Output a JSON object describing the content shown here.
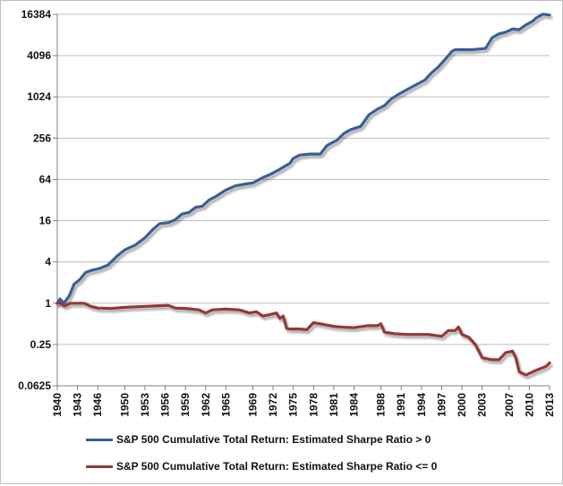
{
  "chart_data": {
    "type": "line",
    "title": "",
    "xlabel": "",
    "ylabel": "",
    "y_scale": "log2",
    "ylim": [
      0.0625,
      16384
    ],
    "xlim": [
      1940,
      2013
    ],
    "yticks": [
      "0.0625",
      "0.25",
      "1",
      "4",
      "16",
      "64",
      "256",
      "1024",
      "4096",
      "16384"
    ],
    "ytick_values": [
      0.0625,
      0.25,
      1,
      4,
      16,
      64,
      256,
      1024,
      4096,
      16384
    ],
    "xticks": [
      "1940",
      "1943",
      "1946",
      "1950",
      "1953",
      "1956",
      "1959",
      "1962",
      "1965",
      "1969",
      "1972",
      "1975",
      "1978",
      "1981",
      "1984",
      "1988",
      "1991",
      "1994",
      "1997",
      "2000",
      "2003",
      "2007",
      "2010",
      "2013"
    ],
    "xtick_values": [
      1940,
      1943,
      1946,
      1950,
      1953,
      1956,
      1959,
      1962,
      1965,
      1969,
      1972,
      1975,
      1978,
      1981,
      1984,
      1988,
      1991,
      1994,
      1997,
      2000,
      2003,
      2007,
      2010,
      2013
    ],
    "grid": "horizontal",
    "legend_position": "bottom",
    "series": [
      {
        "name": "S&P 500 Cumulative Total Return: Estimated Sharpe Ratio > 0",
        "color": "#3a5f95",
        "points": [
          [
            1940.0,
            1.0
          ],
          [
            1940.4,
            1.15
          ],
          [
            1941.0,
            1.0
          ],
          [
            1941.8,
            1.3
          ],
          [
            1942.5,
            1.9
          ],
          [
            1943.3,
            2.2
          ],
          [
            1944.2,
            2.8
          ],
          [
            1945.0,
            3.0
          ],
          [
            1946.2,
            3.2
          ],
          [
            1947.5,
            3.6
          ],
          [
            1949.0,
            5.0
          ],
          [
            1950.0,
            6.0
          ],
          [
            1951.5,
            7.0
          ],
          [
            1953.0,
            9.0
          ],
          [
            1954.2,
            12.0
          ],
          [
            1955.2,
            14.5
          ],
          [
            1956.5,
            15.0
          ],
          [
            1957.5,
            16.5
          ],
          [
            1958.5,
            20.0
          ],
          [
            1959.5,
            21.0
          ],
          [
            1960.5,
            25.0
          ],
          [
            1961.5,
            26.0
          ],
          [
            1962.5,
            32.0
          ],
          [
            1963.5,
            36.0
          ],
          [
            1965.0,
            45.0
          ],
          [
            1966.5,
            52.0
          ],
          [
            1968.0,
            55.0
          ],
          [
            1969.0,
            57.0
          ],
          [
            1970.5,
            68.0
          ],
          [
            1971.5,
            75.0
          ],
          [
            1973.0,
            90.0
          ],
          [
            1974.5,
            110.0
          ],
          [
            1975.0,
            130.0
          ],
          [
            1976.0,
            145.0
          ],
          [
            1977.5,
            150.0
          ],
          [
            1979.0,
            150.0
          ],
          [
            1980.0,
            200.0
          ],
          [
            1981.5,
            240.0
          ],
          [
            1982.5,
            300.0
          ],
          [
            1983.5,
            340.0
          ],
          [
            1985.0,
            380.0
          ],
          [
            1986.2,
            560.0
          ],
          [
            1987.5,
            680.0
          ],
          [
            1988.5,
            760.0
          ],
          [
            1989.5,
            950.0
          ],
          [
            1990.5,
            1100.0
          ],
          [
            1991.5,
            1250.0
          ],
          [
            1993.0,
            1500.0
          ],
          [
            1994.5,
            1800.0
          ],
          [
            1995.5,
            2300.0
          ],
          [
            1996.5,
            2800.0
          ],
          [
            1997.5,
            3600.0
          ],
          [
            1998.5,
            4700.0
          ],
          [
            1999.0,
            5000.0
          ],
          [
            2000.0,
            5000.0
          ],
          [
            2001.0,
            5000.0
          ],
          [
            2001.5,
            5000.0
          ],
          [
            2002.5,
            5100.0
          ],
          [
            2003.5,
            5200.0
          ],
          [
            2004.5,
            7500.0
          ],
          [
            2005.5,
            8500.0
          ],
          [
            2006.5,
            9000.0
          ],
          [
            2007.5,
            10000.0
          ],
          [
            2008.5,
            9800.0
          ],
          [
            2009.5,
            11500.0
          ],
          [
            2010.5,
            13000.0
          ],
          [
            2011.0,
            14500.0
          ],
          [
            2012.0,
            16500.0
          ],
          [
            2013.0,
            16000.0
          ]
        ]
      },
      {
        "name": "S&P 500 Cumulative Total Return: Estimated Sharpe Ratio <= 0",
        "color": "#953735",
        "points": [
          [
            1940.0,
            1.0
          ],
          [
            1940.5,
            1.0
          ],
          [
            1941.0,
            0.92
          ],
          [
            1941.5,
            0.95
          ],
          [
            1942.0,
            1.0
          ],
          [
            1944.0,
            1.0
          ],
          [
            1945.0,
            0.9
          ],
          [
            1946.0,
            0.85
          ],
          [
            1948.0,
            0.84
          ],
          [
            1950.0,
            0.87
          ],
          [
            1953.0,
            0.9
          ],
          [
            1955.0,
            0.92
          ],
          [
            1956.5,
            0.93
          ],
          [
            1957.5,
            0.85
          ],
          [
            1959.0,
            0.84
          ],
          [
            1961.0,
            0.8
          ],
          [
            1962.0,
            0.72
          ],
          [
            1963.0,
            0.8
          ],
          [
            1965.0,
            0.82
          ],
          [
            1967.0,
            0.8
          ],
          [
            1968.5,
            0.72
          ],
          [
            1969.5,
            0.75
          ],
          [
            1970.5,
            0.65
          ],
          [
            1971.5,
            0.68
          ],
          [
            1972.5,
            0.72
          ],
          [
            1973.0,
            0.6
          ],
          [
            1973.5,
            0.65
          ],
          [
            1974.0,
            0.43
          ],
          [
            1974.5,
            0.42
          ],
          [
            1976.0,
            0.42
          ],
          [
            1977.0,
            0.41
          ],
          [
            1978.0,
            0.52
          ],
          [
            1979.0,
            0.5
          ],
          [
            1980.0,
            0.48
          ],
          [
            1981.0,
            0.46
          ],
          [
            1982.0,
            0.45
          ],
          [
            1984.0,
            0.44
          ],
          [
            1986.0,
            0.47
          ],
          [
            1987.5,
            0.47
          ],
          [
            1988.0,
            0.5
          ],
          [
            1988.5,
            0.38
          ],
          [
            1990.0,
            0.36
          ],
          [
            1992.0,
            0.35
          ],
          [
            1995.0,
            0.35
          ],
          [
            1997.0,
            0.33
          ],
          [
            1998.0,
            0.4
          ],
          [
            1999.0,
            0.4
          ],
          [
            1999.5,
            0.45
          ],
          [
            2000.0,
            0.35
          ],
          [
            2001.0,
            0.32
          ],
          [
            2002.0,
            0.25
          ],
          [
            2003.0,
            0.16
          ],
          [
            2004.5,
            0.15
          ],
          [
            2005.5,
            0.15
          ],
          [
            2006.5,
            0.19
          ],
          [
            2007.5,
            0.2
          ],
          [
            2008.0,
            0.16
          ],
          [
            2008.5,
            0.1
          ],
          [
            2009.5,
            0.09
          ],
          [
            2010.5,
            0.1
          ],
          [
            2011.5,
            0.11
          ],
          [
            2012.5,
            0.12
          ],
          [
            2013.0,
            0.135
          ]
        ]
      }
    ]
  }
}
